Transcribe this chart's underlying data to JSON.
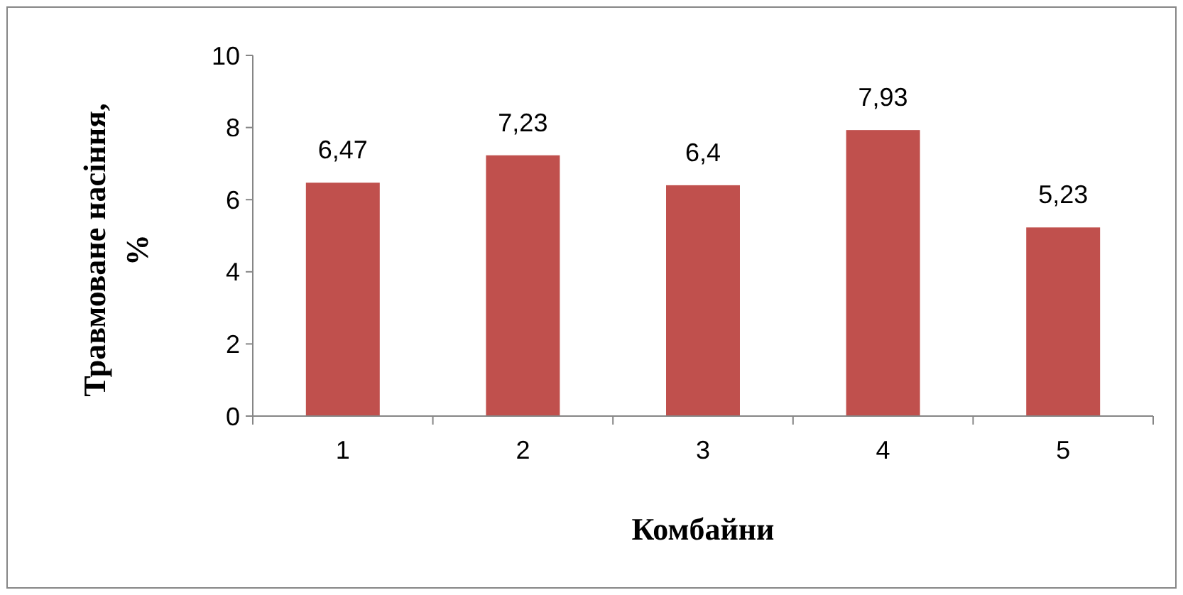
{
  "chart_data": {
    "type": "bar",
    "xlabel": "Комбайни",
    "ylabel": "Травмоване насіння, %",
    "categories": [
      "1",
      "2",
      "3",
      "4",
      "5"
    ],
    "values": [
      6.47,
      7.23,
      6.4,
      7.93,
      5.23
    ],
    "value_labels": [
      "6,47",
      "7,23",
      "6,4",
      "7,93",
      "5,23"
    ],
    "color": "#c0504d",
    "ylim": [
      0,
      10
    ],
    "yticks": [
      0,
      2,
      4,
      6,
      8,
      10
    ],
    "grid": false
  }
}
